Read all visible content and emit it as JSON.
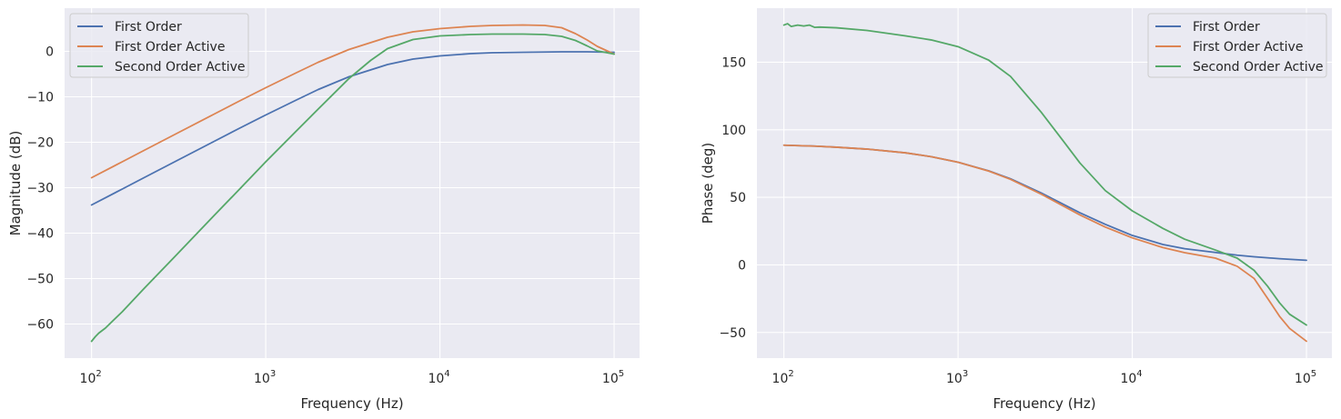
{
  "colors": {
    "plot_background": "#EAEAF2",
    "grid": "#FFFFFF",
    "first_order": "#4C72B0",
    "first_order_active": "#DD8452",
    "second_order_active": "#55A868"
  },
  "chart_data": [
    {
      "type": "line",
      "xlabel": "Frequency (Hz)",
      "ylabel": "Magnitude (dB)",
      "xscale": "log",
      "xlim": [
        70,
        140000
      ],
      "ylim": [
        -67.5,
        9.5
      ],
      "xticks": [
        100,
        1000,
        10000,
        100000
      ],
      "yticks": [
        0,
        -10,
        -20,
        -30,
        -40,
        -50,
        -60
      ],
      "grid": true,
      "legend_position": "upper left",
      "series": [
        {
          "name": "First Order",
          "color": "#4C72B0",
          "x": [
            100,
            150,
            200,
            300,
            500,
            700,
            1000,
            1500,
            2000,
            3000,
            5000,
            7000,
            10000,
            15000,
            20000,
            30000,
            50000,
            70000,
            100000
          ],
          "y": [
            -33.8,
            -30.3,
            -27.8,
            -24.3,
            -19.9,
            -17.0,
            -14.0,
            -10.7,
            -8.4,
            -5.6,
            -2.9,
            -1.7,
            -1.0,
            -0.5,
            -0.3,
            -0.2,
            -0.1,
            -0.1,
            -0.2
          ]
        },
        {
          "name": "First Order Active",
          "color": "#DD8452",
          "x": [
            100,
            150,
            200,
            300,
            500,
            700,
            1000,
            1500,
            2000,
            3000,
            5000,
            7000,
            10000,
            15000,
            20000,
            30000,
            40000,
            50000,
            60000,
            70000,
            80000,
            100000
          ],
          "y": [
            -27.8,
            -24.3,
            -21.8,
            -18.3,
            -13.9,
            -11.0,
            -8.0,
            -4.7,
            -2.4,
            0.4,
            3.1,
            4.3,
            5.0,
            5.5,
            5.7,
            5.8,
            5.7,
            5.2,
            3.9,
            2.5,
            1.1,
            -0.6
          ]
        },
        {
          "name": "Second Order Active",
          "color": "#55A868",
          "x": [
            100,
            105,
            110,
            120,
            130,
            150,
            200,
            300,
            500,
            700,
            1000,
            1500,
            2000,
            3000,
            4000,
            5000,
            7000,
            10000,
            15000,
            20000,
            30000,
            40000,
            50000,
            60000,
            70000,
            80000,
            100000
          ],
          "y": [
            -63.8,
            -62.8,
            -62.0,
            -60.9,
            -59.6,
            -57.3,
            -52.2,
            -45.2,
            -36.3,
            -30.5,
            -24.3,
            -17.5,
            -12.7,
            -6.0,
            -2.0,
            0.6,
            2.6,
            3.4,
            3.7,
            3.8,
            3.8,
            3.7,
            3.3,
            2.4,
            1.2,
            0.1,
            -0.6
          ]
        }
      ]
    },
    {
      "type": "line",
      "xlabel": "Frequency (Hz)",
      "ylabel": "Phase (deg)",
      "xscale": "log",
      "xlim": [
        70,
        140000
      ],
      "ylim": [
        -69,
        190
      ],
      "xticks": [
        100,
        1000,
        10000,
        100000
      ],
      "yticks": [
        150,
        100,
        50,
        0,
        -50
      ],
      "grid": true,
      "legend_position": "upper right",
      "series": [
        {
          "name": "First Order",
          "color": "#4C72B0",
          "x": [
            100,
            150,
            200,
            300,
            500,
            700,
            1000,
            1500,
            2000,
            3000,
            5000,
            7000,
            10000,
            15000,
            20000,
            30000,
            40000,
            50000,
            70000,
            100000
          ],
          "y": [
            88.6,
            87.9,
            87.1,
            85.7,
            82.9,
            80.1,
            76.0,
            69.6,
            63.7,
            53.2,
            38.6,
            30.0,
            21.8,
            15.1,
            12.0,
            9.2,
            7.2,
            6.0,
            4.6,
            3.4
          ]
        },
        {
          "name": "First Order Active",
          "color": "#DD8452",
          "x": [
            100,
            150,
            200,
            300,
            500,
            700,
            1000,
            1500,
            2000,
            3000,
            5000,
            7000,
            10000,
            15000,
            20000,
            30000,
            40000,
            50000,
            60000,
            70000,
            80000,
            100000
          ],
          "y": [
            88.6,
            87.9,
            87.1,
            85.7,
            82.9,
            80.1,
            76.0,
            69.4,
            63.3,
            52.4,
            37.0,
            28.0,
            20.0,
            12.8,
            9.0,
            5.0,
            -1.0,
            -10.0,
            -25.0,
            -38.0,
            -47.0,
            -56.5
          ]
        },
        {
          "name": "Second Order Active",
          "color": "#55A868",
          "x": [
            100,
            105,
            110,
            120,
            130,
            140,
            150,
            160,
            200,
            300,
            500,
            700,
            1000,
            1500,
            2000,
            3000,
            4000,
            5000,
            7000,
            10000,
            15000,
            20000,
            30000,
            40000,
            50000,
            60000,
            70000,
            80000,
            100000
          ],
          "y": [
            177.5,
            178.5,
            176.5,
            177.5,
            176.8,
            177.5,
            175.8,
            176.0,
            175.5,
            173.5,
            169.5,
            166.5,
            161.5,
            151.5,
            139.5,
            113.0,
            92.0,
            75.5,
            55.0,
            40.0,
            27.0,
            19.0,
            11.0,
            5.0,
            -4.0,
            -16.0,
            -28.0,
            -36.5,
            -44.5
          ]
        }
      ]
    }
  ]
}
